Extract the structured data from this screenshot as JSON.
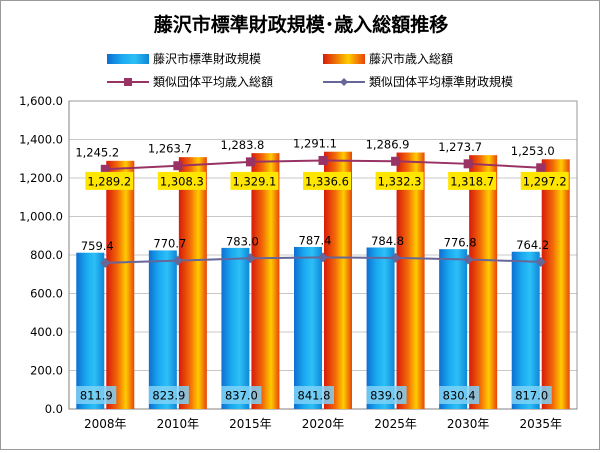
{
  "chart_data": {
    "type": "bar",
    "title": "藤沢市標準財政規模･歳入総額推移",
    "categories": [
      "2008年",
      "2010年",
      "2015年",
      "2020年",
      "2025年",
      "2030年",
      "2035年"
    ],
    "ylim": [
      0,
      1600
    ],
    "yticks": [
      "0.0",
      "200.0",
      "400.0",
      "600.0",
      "800.0",
      "1,000.0",
      "1,200.0",
      "1,400.0",
      "1,600.0"
    ],
    "grid": true,
    "legend_position": "top",
    "bar_series": [
      {
        "name": "藤沢市標準財政規模",
        "values": [
          811.9,
          823.9,
          837.0,
          841.8,
          839.0,
          830.4,
          817.0
        ],
        "labels": [
          "811.9",
          "823.9",
          "837.0",
          "841.8",
          "839.0",
          "830.4",
          "817.0"
        ],
        "color": "#1aa0e8"
      },
      {
        "name": "藤沢市歳入総額",
        "values": [
          1289.2,
          1308.3,
          1329.1,
          1336.6,
          1332.3,
          1318.7,
          1297.2
        ],
        "labels": [
          "1,289.2",
          "1,308.3",
          "1,329.1",
          "1,336.6",
          "1,332.3",
          "1,318.7",
          "1,297.2"
        ],
        "color": "#e83010"
      }
    ],
    "line_series": [
      {
        "name": "類似団体平均歳入総額",
        "values": [
          1245.2,
          1263.7,
          1283.8,
          1291.1,
          1286.9,
          1273.7,
          1253.0
        ],
        "labels": [
          "1,245.2",
          "1,263.7",
          "1,283.8",
          "1,291.1",
          "1,286.9",
          "1,273.7",
          "1,253.0"
        ],
        "color": "#993366",
        "marker": "square"
      },
      {
        "name": "類似団体平均標準財政規模",
        "values": [
          759.4,
          770.7,
          783.0,
          787.4,
          784.8,
          776.8,
          764.2
        ],
        "labels": [
          "759.4",
          "770.7",
          "783.0",
          "787.4",
          "784.8",
          "776.8",
          "764.2"
        ],
        "color": "#666699",
        "marker": "diamond"
      }
    ]
  }
}
